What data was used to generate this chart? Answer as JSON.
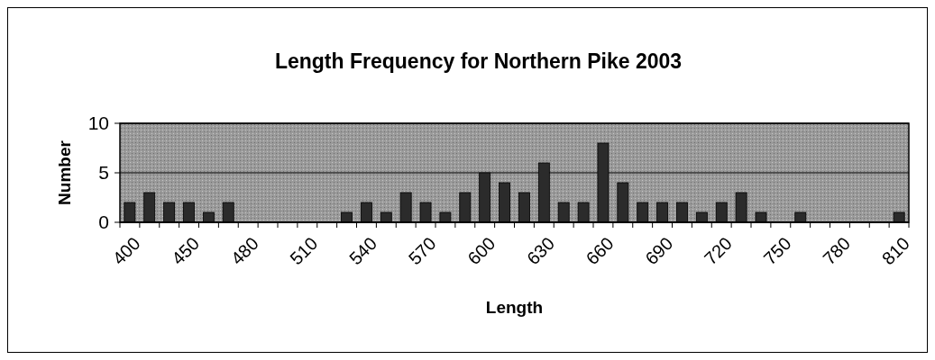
{
  "chart_data": {
    "type": "bar",
    "title": "Length Frequency for Northern Pike 2003",
    "xlabel": "Length",
    "ylabel": "Number",
    "categories": [
      "400",
      null,
      null,
      "450",
      null,
      null,
      "480",
      null,
      null,
      "510",
      null,
      null,
      "540",
      null,
      null,
      "570",
      null,
      null,
      "600",
      null,
      null,
      "630",
      null,
      null,
      "660",
      null,
      null,
      "690",
      null,
      null,
      "720",
      null,
      null,
      "750",
      null,
      null,
      "780",
      null,
      null,
      "810"
    ],
    "values": [
      2,
      3,
      2,
      2,
      1,
      2,
      0,
      0,
      0,
      0,
      0,
      1,
      2,
      1,
      3,
      2,
      1,
      3,
      5,
      4,
      3,
      6,
      2,
      2,
      8,
      4,
      2,
      2,
      2,
      1,
      2,
      3,
      1,
      0,
      1,
      0,
      0,
      0,
      0,
      1
    ],
    "color": "#2b2b2b",
    "ylim": [
      0,
      10
    ],
    "yticks": [
      0,
      5,
      10
    ],
    "grid": "y"
  }
}
